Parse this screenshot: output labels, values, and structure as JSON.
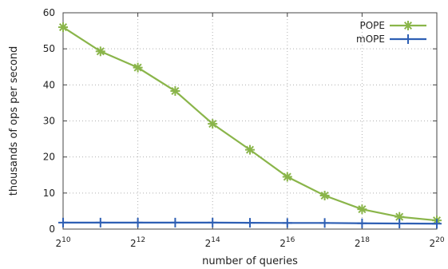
{
  "chart_data": {
    "type": "line",
    "xlabel": "number of queries",
    "ylabel": "thousands of ops per second",
    "x_scale": "log2",
    "x_exponents": [
      10,
      11,
      12,
      13,
      14,
      15,
      16,
      17,
      18,
      19,
      20
    ],
    "xticks": [
      {
        "base": "2",
        "exp": "10",
        "value": 10
      },
      {
        "base": "2",
        "exp": "12",
        "value": 12
      },
      {
        "base": "2",
        "exp": "14",
        "value": 14
      },
      {
        "base": "2",
        "exp": "16",
        "value": 16
      },
      {
        "base": "2",
        "exp": "18",
        "value": 18
      },
      {
        "base": "2",
        "exp": "20",
        "value": 20
      }
    ],
    "yticks": [
      "0",
      "10",
      "20",
      "30",
      "40",
      "50",
      "60"
    ],
    "ylim": [
      0,
      60
    ],
    "xlim": [
      10,
      20
    ],
    "grid": true,
    "legend_position": "top-right",
    "series": [
      {
        "name": "POPE",
        "color": "#8ab54a",
        "marker": "asterisk",
        "values": [
          56,
          49.3,
          44.8,
          38.3,
          29.2,
          22,
          14.5,
          9.3,
          5.5,
          3.4,
          2.4
        ]
      },
      {
        "name": "mOPE",
        "color": "#2e5fb4",
        "marker": "plus",
        "values": [
          1.8,
          1.8,
          1.8,
          1.8,
          1.8,
          1.75,
          1.7,
          1.7,
          1.6,
          1.55,
          1.5
        ]
      }
    ]
  }
}
